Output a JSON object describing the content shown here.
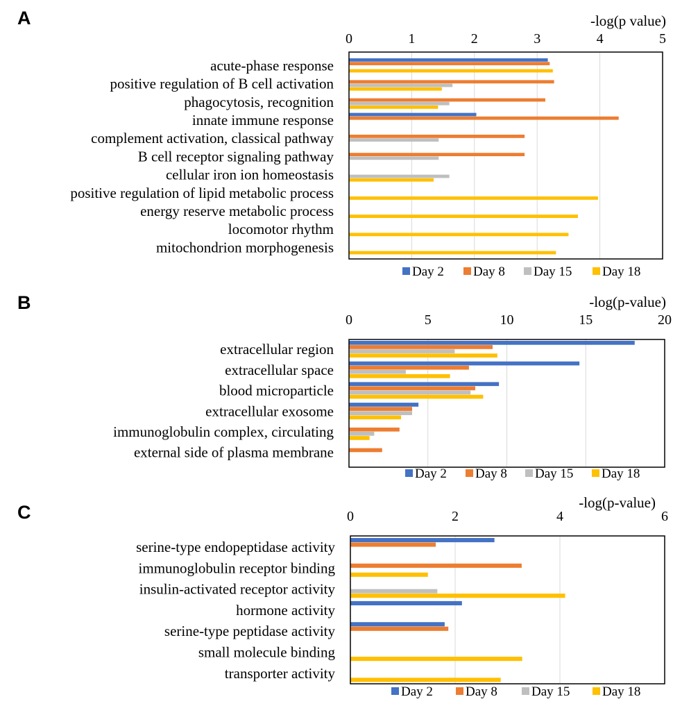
{
  "chart_data": [
    {
      "type": "bar",
      "orientation": "horizontal",
      "panel_label": "A",
      "xlabel": "-log(p value)",
      "xlim": [
        0,
        5
      ],
      "xticks": [
        "0",
        "1",
        "2",
        "3",
        "4",
        "5"
      ],
      "grid": true,
      "legend_position": "bottom",
      "categories": [
        "acute-phase response",
        "positive regulation of B cell activation",
        "phagocytosis, recognition",
        "innate immune response",
        "complement activation, classical pathway",
        "B cell receptor signaling pathway",
        "cellular iron ion homeostasis",
        "positive regulation of lipid metabolic process",
        "energy reserve metabolic process",
        "locomotor rhythm",
        "mitochondrion morphogenesis"
      ],
      "series": [
        {
          "name": "Day 2",
          "color": "#4472C4",
          "values": [
            3.17,
            0,
            0,
            2.03,
            0,
            0,
            0,
            0,
            0,
            0,
            0
          ]
        },
        {
          "name": "Day 8",
          "color": "#ED7D31",
          "values": [
            3.2,
            3.27,
            3.13,
            4.3,
            2.8,
            2.8,
            0,
            0,
            0,
            0,
            0
          ]
        },
        {
          "name": "Day 15",
          "color": "#BFBFBF",
          "values": [
            0,
            1.65,
            1.6,
            0,
            1.43,
            1.43,
            1.6,
            0,
            0,
            0,
            0
          ]
        },
        {
          "name": "Day 18",
          "color": "#FFC000",
          "values": [
            3.25,
            1.48,
            1.42,
            0,
            0,
            0,
            1.35,
            3.97,
            3.65,
            3.5,
            3.3
          ]
        }
      ]
    },
    {
      "type": "bar",
      "orientation": "horizontal",
      "panel_label": "B",
      "xlabel": "-log(p-value)",
      "xlim": [
        0,
        20
      ],
      "xticks": [
        "0",
        "5",
        "10",
        "15",
        "20"
      ],
      "grid": true,
      "legend_position": "bottom",
      "categories": [
        "extracellular region",
        "extracellular space",
        "blood microparticle",
        "extracellular exosome",
        "immunoglobulin complex, circulating",
        "external side of plasma membrane"
      ],
      "series": [
        {
          "name": "Day 2",
          "color": "#4472C4",
          "values": [
            18.1,
            14.6,
            9.5,
            4.4,
            0,
            0
          ]
        },
        {
          "name": "Day 8",
          "color": "#ED7D31",
          "values": [
            9.1,
            7.6,
            8.0,
            4.0,
            3.2,
            2.1
          ]
        },
        {
          "name": "Day 15",
          "color": "#BFBFBF",
          "values": [
            6.7,
            3.6,
            7.7,
            4.0,
            1.6,
            0
          ]
        },
        {
          "name": "Day 18",
          "color": "#FFC000",
          "values": [
            9.4,
            6.4,
            8.5,
            3.3,
            1.3,
            0
          ]
        }
      ]
    },
    {
      "type": "bar",
      "orientation": "horizontal",
      "panel_label": "C",
      "xlabel": "-log(p-value)",
      "xlim": [
        0,
        6
      ],
      "xticks": [
        "0",
        "2",
        "4",
        "6"
      ],
      "grid": true,
      "legend_position": "bottom",
      "categories": [
        "serine-type endopeptidase activity",
        "immunoglobulin receptor binding",
        "insulin-activated receptor activity",
        "hormone activity",
        "serine-type peptidase activity",
        "small molecule binding",
        "transporter activity"
      ],
      "series": [
        {
          "name": "Day 2",
          "color": "#4472C4",
          "values": [
            2.75,
            0,
            0,
            2.13,
            1.8,
            0,
            0
          ]
        },
        {
          "name": "Day 8",
          "color": "#ED7D31",
          "values": [
            1.63,
            3.27,
            0,
            0,
            1.87,
            0,
            0
          ]
        },
        {
          "name": "Day 15",
          "color": "#BFBFBF",
          "values": [
            0,
            0,
            1.66,
            0,
            0,
            0,
            0
          ]
        },
        {
          "name": "Day 18",
          "color": "#FFC000",
          "values": [
            0,
            1.48,
            4.1,
            0,
            0,
            3.28,
            2.87
          ]
        }
      ]
    }
  ]
}
